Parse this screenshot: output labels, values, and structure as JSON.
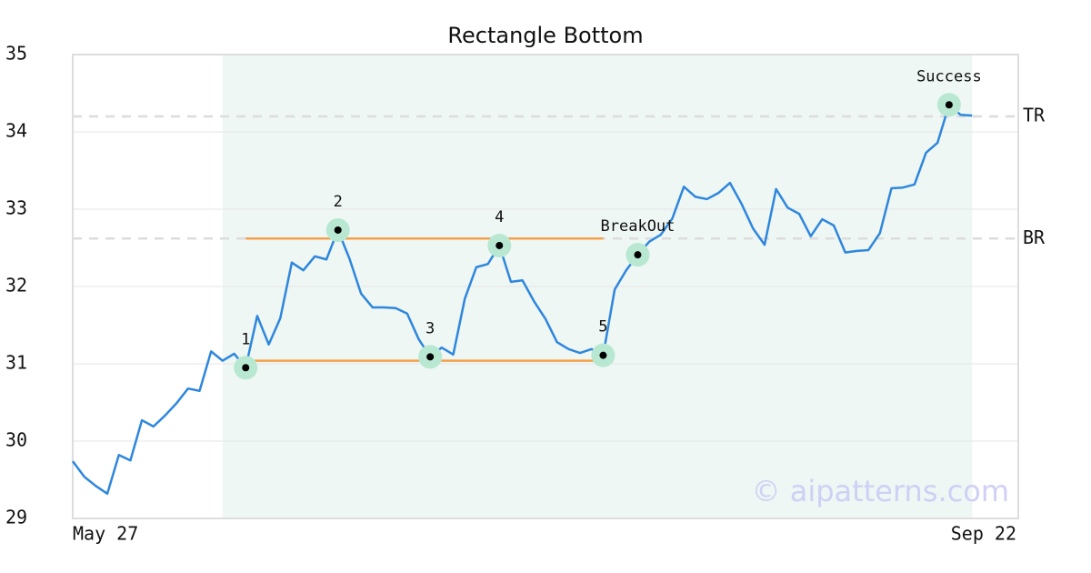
{
  "chart_data": {
    "type": "line",
    "title": "Rectangle Bottom",
    "xlim": [
      0,
      82
    ],
    "xticks": [
      {
        "value": 0,
        "label": "May 27"
      },
      {
        "value": 82,
        "label": "Sep 22"
      }
    ],
    "ylim": [
      29,
      35
    ],
    "yticks": [
      29,
      30,
      31,
      32,
      33,
      34,
      35
    ],
    "grid": true,
    "series": [
      {
        "color": "#2e86de",
        "values": [
          29.74,
          29.54,
          29.42,
          29.32,
          29.82,
          29.75,
          30.27,
          30.19,
          30.33,
          30.49,
          30.68,
          30.65,
          31.16,
          31.04,
          31.13,
          30.95,
          31.62,
          31.25,
          31.59,
          32.31,
          32.21,
          32.39,
          32.35,
          32.73,
          32.36,
          31.91,
          31.73,
          31.73,
          31.72,
          31.65,
          31.32,
          31.09,
          31.21,
          31.12,
          31.84,
          32.25,
          32.29,
          32.53,
          32.06,
          32.08,
          31.81,
          31.58,
          31.28,
          31.19,
          31.14,
          31.19,
          31.11,
          31.96,
          32.21,
          32.41,
          32.58,
          32.67,
          32.88,
          33.29,
          33.16,
          33.13,
          33.21,
          33.34,
          33.07,
          32.75,
          32.54,
          33.26,
          33.02,
          32.94,
          32.65,
          32.87,
          32.79,
          32.44,
          32.46,
          32.47,
          32.69,
          33.27,
          33.28,
          33.32,
          33.73,
          33.86,
          34.35,
          34.22,
          34.21
        ]
      }
    ],
    "shade": {
      "from": 13,
      "to": 78,
      "color": "#eef7f3"
    },
    "levels": [
      {
        "label": "TR",
        "value": 34.2
      },
      {
        "label": "BR",
        "value": 32.62
      }
    ],
    "segments": [
      {
        "from": 15,
        "to": 46,
        "value": 32.62,
        "color": "#f5a04a"
      },
      {
        "from": 15,
        "to": 46,
        "value": 31.04,
        "color": "#f5a04a"
      }
    ],
    "annotations": [
      {
        "label": "1",
        "index": 15
      },
      {
        "label": "2",
        "index": 23
      },
      {
        "label": "3",
        "index": 31
      },
      {
        "label": "4",
        "index": 37
      },
      {
        "label": "5",
        "index": 46
      },
      {
        "label": "BreakOut",
        "index": 49
      },
      {
        "label": "Success",
        "index": 76
      }
    ],
    "watermark": "© aipatterns.com"
  }
}
